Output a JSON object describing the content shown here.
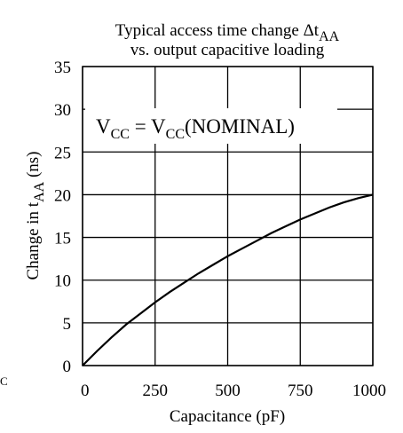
{
  "chart_data": {
    "type": "line",
    "title_line1_prefix": "Typical access time change Δt",
    "title_line1_sub": "AA",
    "title_line2": "vs. output capacitive loading",
    "xlabel": "Capacitance  (pF)",
    "ylabel_prefix": "Change in t",
    "ylabel_sub": "AA",
    "ylabel_suffix": "  (ns)",
    "annotation": {
      "v1": "V",
      "s1": "CC",
      "mid": " = V",
      "s2": "CC",
      "end": "(NOMINAL)"
    },
    "margin_char": "C",
    "xlim": [
      0,
      1000
    ],
    "ylim": [
      0,
      35
    ],
    "xticks": [
      0,
      250,
      500,
      750,
      1000
    ],
    "yticks": [
      0,
      5,
      10,
      15,
      20,
      25,
      30,
      35
    ],
    "grid": true,
    "series": [
      {
        "x": [
          0,
          50,
          100,
          150,
          200,
          250,
          300,
          350,
          400,
          450,
          500,
          550,
          600,
          650,
          700,
          750,
          800,
          850,
          900,
          950,
          1000
        ],
        "values": [
          0,
          1.7,
          3.3,
          4.8,
          6.1,
          7.4,
          8.6,
          9.7,
          10.8,
          11.8,
          12.8,
          13.7,
          14.6,
          15.5,
          16.3,
          17.1,
          17.8,
          18.5,
          19.1,
          19.6,
          20.0
        ]
      }
    ],
    "colors": {
      "line": "#000000",
      "background": "#ffffff"
    }
  }
}
